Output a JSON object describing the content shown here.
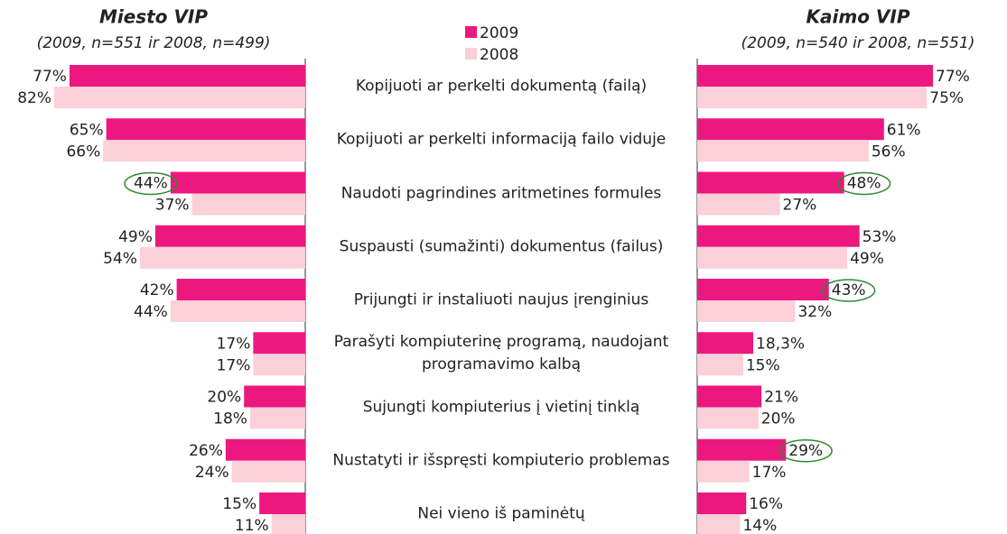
{
  "chart_data": {
    "type": "butterfly",
    "categories": [
      "Kopijuoti ar perkelti dokumentą (failą)",
      "Kopijuoti ar perkelti informaciją failo viduje",
      "Naudoti pagrindines aritmetines formules",
      "Suspausti (sumažinti) dokumentus (failus)",
      "Prijungti ir instaliuoti naujus įrenginius",
      "Parašyti kompiuterinę programą, naudojant programavimo kalbą",
      "Sujungti kompiuterius į vietinį tinklą",
      "Nustatyti ir išspręsti kompiuterio problemas",
      "Nei vieno iš paminėtų"
    ],
    "legend": [
      {
        "name": "2009",
        "color": "#ec187f"
      },
      {
        "name": "2008",
        "color": "#fcd0d9"
      }
    ],
    "panels": [
      {
        "title": "Miesto VIP",
        "subtitle": "(2009, n=551 ir 2008, n=499)",
        "side": "left",
        "series": [
          {
            "values": [
              77,
              65,
              44,
              49,
              42,
              17,
              20,
              26,
              15
            ],
            "value_labels": [
              "77%",
              "65%",
              "44%",
              "49%",
              "42%",
              "17%",
              "20%",
              "26%",
              "15%"
            ]
          },
          {
            "values": [
              82,
              66,
              37,
              54,
              44,
              17,
              18,
              24,
              11
            ],
            "value_labels": [
              "82%",
              "66%",
              "37%",
              "54%",
              "44%",
              "17%",
              "18%",
              "24%",
              "11%"
            ]
          }
        ],
        "circled": [
          2
        ]
      },
      {
        "title": "Kaimo VIP",
        "subtitle": "(2009, n=540 ir 2008, n=551)",
        "side": "right",
        "series": [
          {
            "values": [
              77,
              61,
              48,
              53,
              43,
              18.3,
              21,
              29,
              16
            ],
            "value_labels": [
              "77%",
              "61%",
              "48%",
              "53%",
              "43%",
              "18,3%",
              "21%",
              "29%",
              "16%"
            ]
          },
          {
            "values": [
              75,
              56,
              27,
              49,
              32,
              15,
              20,
              17,
              14
            ],
            "value_labels": [
              "75%",
              "56%",
              "27%",
              "49%",
              "32%",
              "15%",
              "20%",
              "17%",
              "14%"
            ]
          }
        ],
        "circled": [
          2,
          4,
          7
        ]
      }
    ]
  }
}
